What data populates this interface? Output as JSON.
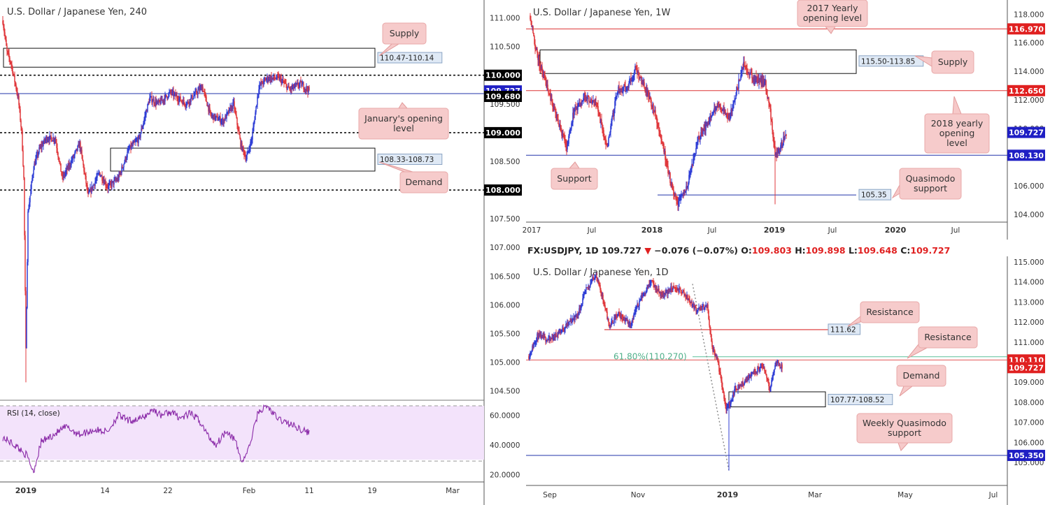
{
  "h4": {
    "title": "U.S. Dollar / Japanese Yen, 240",
    "price_ticks": [
      "111.000",
      "110.500",
      "110.000",
      "109.500",
      "109.000",
      "108.500",
      "108.000",
      "107.500",
      "107.000",
      "106.500",
      "106.000",
      "105.500",
      "105.000",
      "104.500"
    ],
    "x_ticks": [
      "2019",
      "14",
      "22",
      "Feb",
      "11",
      "19",
      "Mar"
    ],
    "tags": [
      {
        "text": "110.000",
        "color": "#000000",
        "value": 110.0
      },
      {
        "text": "109.727",
        "color": "#1f1fc4",
        "value": 109.727
      },
      {
        "text": "109.680",
        "color": "#000000",
        "value": 109.68
      },
      {
        "text": "109.000",
        "color": "#000000",
        "value": 109.0
      },
      {
        "text": "108.000",
        "color": "#000000",
        "value": 108.0
      }
    ],
    "zones": {
      "supply": "110.47-110.14",
      "demand": "108.33-108.73"
    },
    "annotations": {
      "supply": "Supply",
      "january": "January's opening level",
      "demand": "Demand"
    },
    "rsi": {
      "label": "RSI (14, close)",
      "ticks": [
        "60.0000",
        "40.0000",
        "20.0000"
      ]
    }
  },
  "w1": {
    "title": "U.S. Dollar / Japanese Yen, 1W",
    "price_ticks": [
      "118.000",
      "116.000",
      "114.000",
      "112.000",
      "110.000",
      "108.000",
      "106.000",
      "104.000"
    ],
    "x_ticks": [
      "2017",
      "Jul",
      "2018",
      "Jul",
      "2019",
      "Jul",
      "2020",
      "Jul"
    ],
    "tags": [
      {
        "text": "116.970",
        "color": "#e02020",
        "value": 116.97
      },
      {
        "text": "112.650",
        "color": "#e02020",
        "value": 112.65
      },
      {
        "text": "109.727",
        "color": "#1f1fc4",
        "value": 109.727
      },
      {
        "text": "108.130",
        "color": "#1f1fc4",
        "value": 108.13
      }
    ],
    "zones": {
      "supply": "115.50-113.85",
      "qm": "105.35"
    },
    "annotations": {
      "y2017": "2017 Yearly opening level",
      "supply": "Supply",
      "y2018": "2018 yearly opening level",
      "support": "Support",
      "qm": "Quasimodo support"
    }
  },
  "d1": {
    "header": {
      "symbol": "FX:USDJPY, 1D",
      "last": "109.727",
      "change": "−0.076 (−0.07%)",
      "o_label": "O:",
      "o": "109.803",
      "h_label": "H:",
      "h": "109.898",
      "l_label": "L:",
      "l": "109.648",
      "c_label": "C:",
      "c": "109.727"
    },
    "title": "U.S. Dollar / Japanese Yen, 1D",
    "price_ticks": [
      "115.000",
      "114.000",
      "113.000",
      "112.000",
      "111.000",
      "110.000",
      "109.000",
      "108.000",
      "107.000",
      "106.000",
      "105.000"
    ],
    "x_ticks": [
      "Sep",
      "Nov",
      "2019",
      "Mar",
      "May",
      "Jul"
    ],
    "tags": [
      {
        "text": "110.110",
        "color": "#e02020",
        "value": 110.11
      },
      {
        "text": "109.727",
        "color": "#e02020",
        "value": 109.727
      },
      {
        "text": "105.350",
        "color": "#1f1fc4",
        "value": 105.35
      }
    ],
    "fib": "61.80%(110.270)",
    "zones": {
      "resistance": "111.62",
      "demand": "107.77-108.52"
    },
    "annotations": {
      "resistance1": "Resistance",
      "resistance2": "Resistance",
      "demand": "Demand",
      "wqm": "Weekly Quasimodo support"
    }
  },
  "chart_data": [
    {
      "type": "candlestick",
      "title": "U.S. Dollar / Japanese Yen, 240",
      "ylim": [
        104.35,
        111.25
      ],
      "levels": {
        "supply_zone": [
          110.14,
          110.47
        ],
        "demand_zone": [
          108.33,
          108.73
        ],
        "round_numbers": [
          110.0,
          109.0,
          108.0
        ],
        "january_open": 109.68,
        "last": 109.727
      },
      "path": [
        [
          0,
          110.95
        ],
        [
          6,
          110.4
        ],
        [
          12,
          110.2
        ],
        [
          22,
          109.6
        ],
        [
          27,
          109.0
        ],
        [
          30,
          108.2
        ],
        [
          33,
          105.2
        ],
        [
          36,
          107.6
        ],
        [
          44,
          108.4
        ],
        [
          52,
          108.7
        ],
        [
          62,
          108.9
        ],
        [
          75,
          108.9
        ],
        [
          85,
          108.2
        ],
        [
          100,
          108.55
        ],
        [
          110,
          108.8
        ],
        [
          122,
          107.9
        ],
        [
          138,
          108.3
        ],
        [
          150,
          108.05
        ],
        [
          165,
          108.2
        ],
        [
          180,
          108.7
        ],
        [
          195,
          108.9
        ],
        [
          210,
          109.6
        ],
        [
          222,
          109.5
        ],
        [
          240,
          109.7
        ],
        [
          262,
          109.5
        ],
        [
          285,
          109.8
        ],
        [
          297,
          109.3
        ],
        [
          315,
          109.2
        ],
        [
          330,
          109.5
        ],
        [
          340,
          108.8
        ],
        [
          348,
          108.55
        ],
        [
          356,
          108.9
        ],
        [
          366,
          109.8
        ],
        [
          378,
          109.95
        ],
        [
          395,
          109.95
        ],
        [
          410,
          109.75
        ],
        [
          425,
          109.85
        ],
        [
          438,
          109.73
        ]
      ],
      "rsi": {
        "ylim": [
          15,
          70
        ],
        "bands": [
          30,
          70
        ],
        "path": [
          [
            0,
            45
          ],
          [
            10,
            42
          ],
          [
            22,
            38
          ],
          [
            34,
            33
          ],
          [
            44,
            22
          ],
          [
            55,
            42
          ],
          [
            70,
            46
          ],
          [
            90,
            52
          ],
          [
            110,
            47
          ],
          [
            130,
            50
          ],
          [
            150,
            49
          ],
          [
            165,
            60
          ],
          [
            180,
            56
          ],
          [
            200,
            58
          ],
          [
            215,
            64
          ],
          [
            225,
            60
          ],
          [
            240,
            62
          ],
          [
            255,
            58
          ],
          [
            268,
            61
          ],
          [
            280,
            57
          ],
          [
            295,
            45
          ],
          [
            305,
            40
          ],
          [
            320,
            50
          ],
          [
            332,
            43
          ],
          [
            342,
            28
          ],
          [
            352,
            38
          ],
          [
            365,
            62
          ],
          [
            378,
            66
          ],
          [
            392,
            58
          ],
          [
            405,
            55
          ],
          [
            420,
            52
          ],
          [
            438,
            48
          ]
        ]
      }
    },
    {
      "type": "candlestick",
      "title": "U.S. Dollar / Japanese Yen, 1W",
      "ylim": [
        103.6,
        118.6
      ],
      "levels": {
        "yearly_open_2017": 116.97,
        "yearly_open_2018": 112.65,
        "supply_zone": [
          113.85,
          115.5
        ],
        "support": 108.13,
        "quasimodo_support": 105.35,
        "last": 109.727
      },
      "path": [
        [
          0,
          117.9
        ],
        [
          8,
          115.5
        ],
        [
          20,
          113.5
        ],
        [
          35,
          111.2
        ],
        [
          52,
          108.6
        ],
        [
          62,
          111.2
        ],
        [
          78,
          112.2
        ],
        [
          95,
          111.6
        ],
        [
          110,
          108.6
        ],
        [
          125,
          112.8
        ],
        [
          138,
          112.8
        ],
        [
          150,
          114.2
        ],
        [
          165,
          112.8
        ],
        [
          180,
          110.8
        ],
        [
          190,
          108.8
        ],
        [
          200,
          106.4
        ],
        [
          210,
          104.7
        ],
        [
          225,
          106.2
        ],
        [
          240,
          109.2
        ],
        [
          255,
          110.6
        ],
        [
          270,
          111.7
        ],
        [
          285,
          110.8
        ],
        [
          298,
          113.2
        ],
        [
          305,
          114.5
        ],
        [
          318,
          113.5
        ],
        [
          336,
          113.2
        ],
        [
          343,
          111.2
        ],
        [
          350,
          108.2
        ],
        [
          356,
          108.5
        ],
        [
          366,
          109.6
        ]
      ]
    },
    {
      "type": "candlestick",
      "title": "U.S. Dollar / Japanese Yen, 1D",
      "ylim": [
        104.55,
        115.1
      ],
      "levels": {
        "fib_61_8": 110.27,
        "resistance": 111.62,
        "daily_level": 110.11,
        "demand_zone": [
          107.77,
          108.52
        ],
        "weekly_quasimodo": 105.35,
        "last": 109.727
      },
      "path": [
        [
          0,
          110.3
        ],
        [
          12,
          111.3
        ],
        [
          30,
          111.1
        ],
        [
          50,
          111.7
        ],
        [
          70,
          112.4
        ],
        [
          82,
          113.6
        ],
        [
          95,
          114.35
        ],
        [
          105,
          113.3
        ],
        [
          115,
          111.8
        ],
        [
          128,
          112.4
        ],
        [
          145,
          111.9
        ],
        [
          160,
          113.2
        ],
        [
          175,
          114.0
        ],
        [
          190,
          113.3
        ],
        [
          205,
          113.7
        ],
        [
          220,
          113.5
        ],
        [
          240,
          112.6
        ],
        [
          255,
          112.8
        ],
        [
          262,
          110.7
        ],
        [
          270,
          110.0
        ],
        [
          282,
          107.7
        ],
        [
          287,
          107.9
        ],
        [
          295,
          108.7
        ],
        [
          305,
          108.9
        ],
        [
          320,
          109.5
        ],
        [
          335,
          109.8
        ],
        [
          345,
          108.7
        ],
        [
          353,
          110.0
        ],
        [
          362,
          109.73
        ]
      ]
    }
  ]
}
